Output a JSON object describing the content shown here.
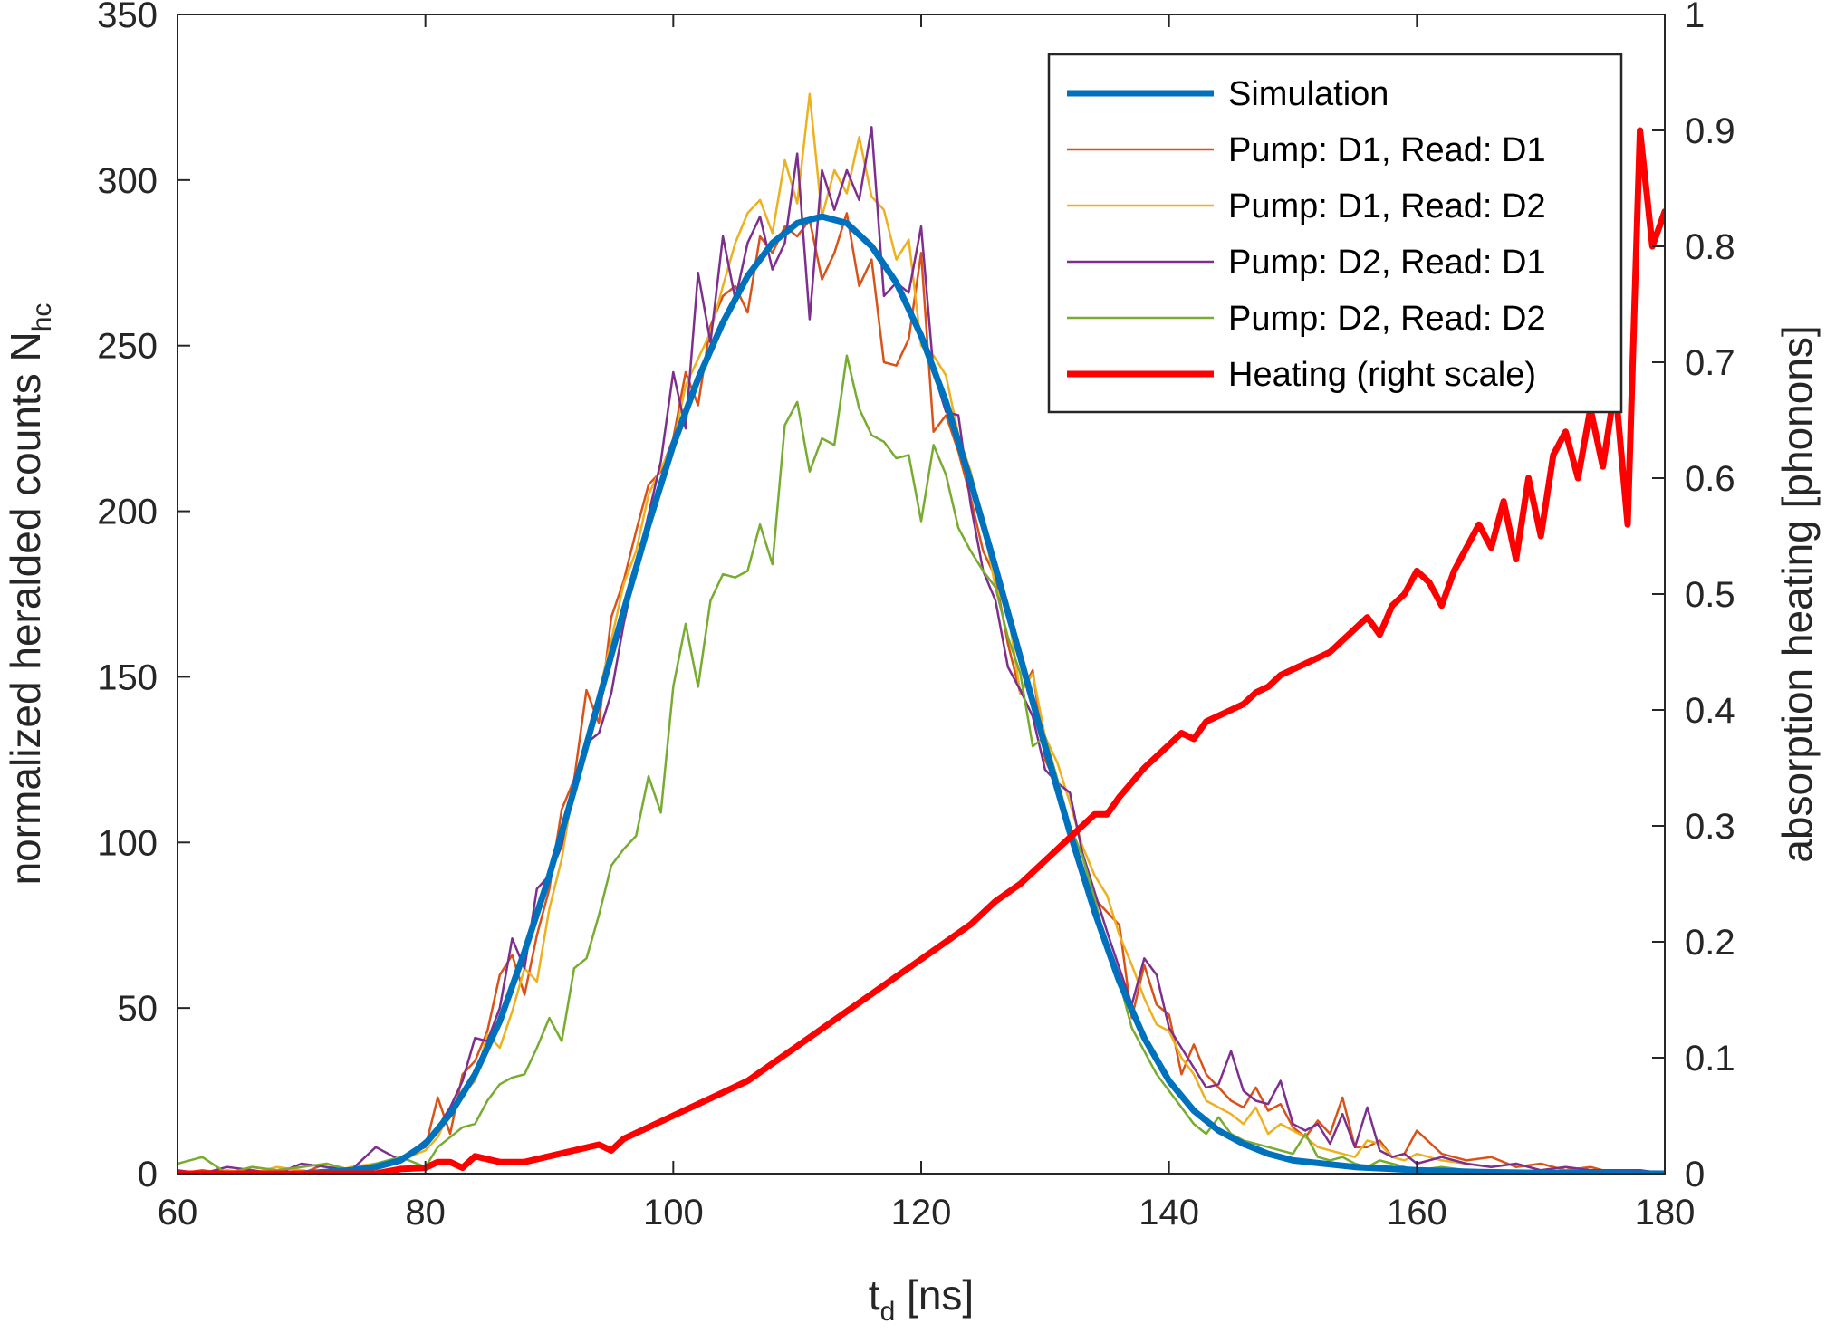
{
  "chart_data": {
    "type": "line",
    "title": "",
    "xlabel": {
      "main": "t",
      "sub": "d",
      "rest": " [ns]"
    },
    "ylabel_left": {
      "main": "normalized heralded counts N",
      "sub": "hc"
    },
    "ylabel_right": "absorption heating [phonons]",
    "xlim": [
      60,
      180
    ],
    "ylim_left": [
      0,
      350
    ],
    "ylim_right": [
      0,
      1
    ],
    "xticks": [
      "60",
      "80",
      "100",
      "120",
      "140",
      "160",
      "180"
    ],
    "yticks_left": [
      "0",
      "50",
      "100",
      "150",
      "200",
      "250",
      "300",
      "350"
    ],
    "yticks_right": [
      "0",
      "0.1",
      "0.2",
      "0.3",
      "0.4",
      "0.5",
      "0.6",
      "0.7",
      "0.8",
      "0.9",
      "1"
    ],
    "grid": false,
    "legend_position": "top-right",
    "series": [
      {
        "name": "Simulation",
        "color": "#0072BD",
        "axis": "left",
        "width": 7,
        "x": [
          60,
          70,
          74,
          76,
          78,
          80,
          82,
          84,
          86,
          88,
          90,
          92,
          94,
          96,
          98,
          100,
          102,
          104,
          106,
          108,
          110,
          112,
          114,
          116,
          118,
          120,
          122,
          124,
          126,
          128,
          130,
          132,
          134,
          136,
          138,
          140,
          142,
          144,
          146,
          148,
          150,
          155,
          160,
          165,
          170,
          175,
          180
        ],
        "y": [
          0,
          0,
          1,
          2,
          4,
          9,
          18,
          30,
          46,
          67,
          90,
          116,
          143,
          170,
          196,
          220,
          240,
          257,
          271,
          281,
          287,
          289,
          287,
          280,
          269,
          253,
          233,
          209,
          183,
          156,
          129,
          103,
          79,
          58,
          41,
          28,
          19,
          13,
          9,
          6,
          4,
          2,
          1,
          0.5,
          0.2,
          0.1,
          0
        ]
      },
      {
        "name": "Pump: D1, Read: D1",
        "color": "#D95319",
        "axis": "left",
        "width": 2.5,
        "x": [
          60,
          62,
          64,
          66,
          68,
          70,
          72,
          74,
          76,
          78,
          80,
          81,
          82,
          83,
          84,
          85,
          86,
          87,
          88,
          89,
          90,
          91,
          92,
          93,
          94,
          95,
          96,
          97,
          98,
          99,
          100,
          101,
          102,
          103,
          104,
          105,
          106,
          107,
          108,
          109,
          110,
          111,
          112,
          113,
          114,
          115,
          116,
          117,
          118,
          119,
          120,
          121,
          122,
          123,
          124,
          125,
          126,
          127,
          128,
          129,
          130,
          131,
          132,
          133,
          134,
          135,
          136,
          137,
          138,
          139,
          140,
          141,
          142,
          143,
          144,
          145,
          146,
          147,
          148,
          149,
          150,
          151,
          152,
          153,
          154,
          155,
          156,
          157,
          158,
          159,
          160,
          162,
          164,
          166,
          168,
          170,
          172,
          174,
          176,
          178,
          180
        ],
        "y": [
          0,
          1,
          0,
          2,
          1,
          0,
          3,
          1,
          2,
          5,
          8,
          23,
          12,
          30,
          34,
          43,
          60,
          66,
          54,
          72,
          86,
          110,
          119,
          146,
          136,
          168,
          179,
          194,
          208,
          212,
          222,
          242,
          232,
          256,
          265,
          268,
          260,
          283,
          278,
          286,
          283,
          288,
          270,
          278,
          290,
          268,
          276,
          245,
          244,
          252,
          278,
          224,
          229,
          218,
          204,
          188,
          180,
          160,
          145,
          152,
          125,
          117,
          105,
          96,
          83,
          79,
          75,
          47,
          63,
          51,
          48,
          30,
          39,
          30,
          26,
          22,
          20,
          26,
          19,
          21,
          14,
          11,
          16,
          12,
          23,
          8,
          8,
          10,
          5,
          6,
          13,
          6,
          4,
          5,
          2,
          3,
          1,
          2,
          0,
          1,
          0
        ]
      },
      {
        "name": "Pump: D1, Read: D2",
        "color": "#EDB120",
        "axis": "left",
        "width": 2.5,
        "x": [
          60,
          62,
          64,
          66,
          68,
          70,
          72,
          74,
          76,
          78,
          80,
          81,
          82,
          83,
          84,
          85,
          86,
          87,
          88,
          89,
          90,
          91,
          92,
          93,
          94,
          95,
          96,
          97,
          98,
          99,
          100,
          101,
          102,
          103,
          104,
          105,
          106,
          107,
          108,
          109,
          110,
          111,
          112,
          113,
          114,
          115,
          116,
          117,
          118,
          119,
          120,
          121,
          122,
          123,
          124,
          125,
          126,
          127,
          128,
          129,
          130,
          131,
          132,
          133,
          134,
          135,
          136,
          137,
          138,
          139,
          140,
          141,
          142,
          143,
          144,
          145,
          146,
          147,
          148,
          149,
          150,
          151,
          152,
          153,
          154,
          155,
          156,
          157,
          158,
          159,
          160,
          162,
          164,
          166,
          168,
          170,
          172,
          174,
          176,
          178,
          180
        ],
        "y": [
          0,
          0,
          1,
          0,
          2,
          1,
          0,
          2,
          3,
          4,
          7,
          11,
          19,
          24,
          28,
          42,
          38,
          49,
          62,
          58,
          80,
          95,
          118,
          131,
          145,
          161,
          178,
          188,
          205,
          213,
          220,
          238,
          246,
          254,
          268,
          281,
          290,
          294,
          284,
          306,
          293,
          326,
          289,
          303,
          296,
          313,
          295,
          291,
          276,
          282,
          250,
          247,
          241,
          223,
          212,
          196,
          177,
          170,
          145,
          151,
          132,
          124,
          112,
          99,
          90,
          84,
          72,
          63,
          53,
          45,
          43,
          35,
          30,
          22,
          20,
          18,
          15,
          20,
          12,
          15,
          13,
          11,
          8,
          7,
          6,
          5,
          10,
          9,
          5,
          4,
          6,
          4,
          3,
          2,
          3,
          1,
          2,
          1,
          0,
          1,
          0
        ]
      },
      {
        "name": "Pump: D2, Read: D1",
        "color": "#7E2F8E",
        "axis": "left",
        "width": 2.5,
        "x": [
          60,
          62,
          64,
          66,
          68,
          70,
          72,
          74,
          76,
          78,
          80,
          81,
          82,
          83,
          84,
          85,
          86,
          87,
          88,
          89,
          90,
          91,
          92,
          93,
          94,
          95,
          96,
          97,
          98,
          99,
          100,
          101,
          102,
          103,
          104,
          105,
          106,
          107,
          108,
          109,
          110,
          111,
          112,
          113,
          114,
          115,
          116,
          117,
          118,
          119,
          120,
          121,
          122,
          123,
          124,
          125,
          126,
          127,
          128,
          129,
          130,
          131,
          132,
          133,
          134,
          135,
          136,
          137,
          138,
          139,
          140,
          141,
          142,
          143,
          144,
          145,
          146,
          147,
          148,
          149,
          150,
          151,
          152,
          153,
          154,
          155,
          156,
          157,
          158,
          159,
          160,
          162,
          164,
          166,
          168,
          170,
          172,
          174,
          176,
          178,
          180
        ],
        "y": [
          1,
          0,
          2,
          1,
          0,
          3,
          2,
          1,
          8,
          4,
          10,
          14,
          20,
          28,
          41,
          40,
          50,
          71,
          62,
          86,
          90,
          99,
          119,
          130,
          133,
          145,
          166,
          183,
          199,
          215,
          242,
          225,
          272,
          251,
          283,
          264,
          281,
          289,
          273,
          281,
          308,
          258,
          303,
          291,
          303,
          294,
          316,
          265,
          269,
          266,
          286,
          242,
          230,
          229,
          202,
          182,
          173,
          153,
          146,
          138,
          122,
          118,
          115,
          97,
          85,
          73,
          62,
          51,
          65,
          60,
          44,
          38,
          32,
          26,
          27,
          37,
          25,
          22,
          21,
          28,
          15,
          13,
          15,
          9,
          18,
          8,
          20,
          7,
          5,
          6,
          3,
          5,
          3,
          2,
          3,
          1,
          2,
          1,
          1,
          1,
          0
        ]
      },
      {
        "name": "Pump: D2, Read: D2",
        "color": "#77AC30",
        "axis": "left",
        "width": 2.5,
        "x": [
          60,
          62,
          64,
          66,
          68,
          70,
          72,
          74,
          76,
          78,
          80,
          81,
          82,
          83,
          84,
          85,
          86,
          87,
          88,
          89,
          90,
          91,
          92,
          93,
          94,
          95,
          96,
          97,
          98,
          99,
          100,
          101,
          102,
          103,
          104,
          105,
          106,
          107,
          108,
          109,
          110,
          111,
          112,
          113,
          114,
          115,
          116,
          117,
          118,
          119,
          120,
          121,
          122,
          123,
          124,
          125,
          126,
          127,
          128,
          129,
          130,
          131,
          132,
          133,
          134,
          135,
          136,
          137,
          138,
          139,
          140,
          141,
          142,
          143,
          144,
          145,
          146,
          147,
          148,
          149,
          150,
          151,
          152,
          153,
          154,
          155,
          156,
          157,
          158,
          159,
          160,
          162,
          164,
          166,
          168,
          170,
          172,
          174,
          176,
          178,
          180
        ],
        "y": [
          3,
          5,
          0,
          2,
          1,
          2,
          3,
          1,
          3,
          5,
          2,
          8,
          11,
          14,
          15,
          22,
          27,
          29,
          30,
          38,
          47,
          40,
          62,
          65,
          78,
          93,
          98,
          102,
          120,
          109,
          147,
          166,
          147,
          173,
          181,
          180,
          182,
          196,
          184,
          226,
          233,
          212,
          222,
          220,
          247,
          231,
          223,
          221,
          216,
          217,
          197,
          220,
          211,
          195,
          188,
          182,
          177,
          162,
          151,
          129,
          132,
          119,
          105,
          96,
          83,
          68,
          58,
          44,
          37,
          30,
          25,
          20,
          15,
          12,
          17,
          12,
          10,
          9,
          8,
          7,
          6,
          12,
          5,
          4,
          5,
          3,
          2,
          4,
          3,
          2,
          1,
          2,
          1,
          1,
          0,
          0,
          1,
          0,
          0,
          0,
          0
        ]
      },
      {
        "name": "Heating (right scale)",
        "color": "#FF0000",
        "axis": "right",
        "width": 7,
        "x": [
          60,
          64,
          68,
          72,
          76,
          78,
          80,
          81,
          82,
          83,
          84,
          86,
          88,
          90,
          92,
          94,
          95,
          96,
          98,
          100,
          102,
          104,
          106,
          108,
          110,
          112,
          114,
          116,
          118,
          120,
          122,
          124,
          126,
          128,
          130,
          132,
          134,
          135,
          136,
          138,
          140,
          141,
          142,
          143,
          144,
          145,
          146,
          147,
          148,
          149,
          150,
          151,
          152,
          153,
          154,
          155,
          156,
          157,
          158,
          159,
          160,
          161,
          162,
          163,
          164,
          165,
          166,
          167,
          168,
          169,
          170,
          171,
          172,
          173,
          174,
          175,
          176,
          177,
          178,
          179,
          180
        ],
        "y": [
          0,
          0,
          0,
          0,
          0,
          0.004,
          0.005,
          0.01,
          0.01,
          0.005,
          0.015,
          0.01,
          0.01,
          0.015,
          0.02,
          0.025,
          0.02,
          0.03,
          0.04,
          0.05,
          0.06,
          0.07,
          0.08,
          0.095,
          0.11,
          0.125,
          0.14,
          0.155,
          0.17,
          0.185,
          0.2,
          0.215,
          0.235,
          0.25,
          0.27,
          0.29,
          0.31,
          0.31,
          0.325,
          0.35,
          0.37,
          0.38,
          0.375,
          0.39,
          0.395,
          0.4,
          0.405,
          0.415,
          0.42,
          0.43,
          0.435,
          0.44,
          0.445,
          0.45,
          0.46,
          0.47,
          0.48,
          0.465,
          0.49,
          0.5,
          0.52,
          0.51,
          0.49,
          0.52,
          0.54,
          0.56,
          0.54,
          0.58,
          0.53,
          0.6,
          0.55,
          0.62,
          0.64,
          0.6,
          0.66,
          0.61,
          0.68,
          0.56,
          0.9,
          0.8,
          0.83
        ]
      }
    ]
  }
}
